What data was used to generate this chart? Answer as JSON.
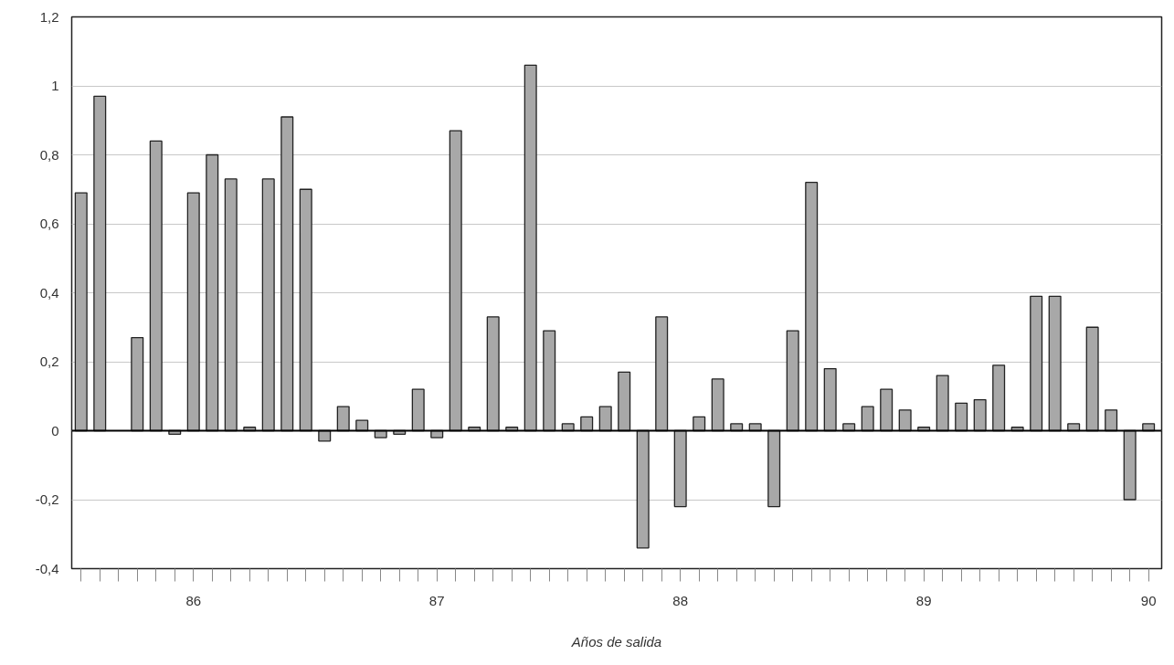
{
  "chart_data": {
    "type": "bar",
    "xlabel": "Años de salida",
    "categories": [
      null,
      null,
      null,
      null,
      null,
      null,
      "86",
      null,
      null,
      null,
      null,
      null,
      null,
      null,
      null,
      null,
      null,
      null,
      null,
      "87",
      null,
      null,
      null,
      null,
      null,
      null,
      null,
      null,
      null,
      null,
      null,
      null,
      "88",
      null,
      null,
      null,
      null,
      null,
      null,
      null,
      null,
      null,
      null,
      null,
      null,
      "89",
      null,
      null,
      null,
      null,
      null,
      null,
      null,
      null,
      null,
      null,
      null,
      "90"
    ],
    "values": [
      0.69,
      0.97,
      null,
      0.27,
      0.84,
      -0.01,
      0.69,
      0.8,
      0.73,
      0.01,
      0.73,
      0.91,
      0.7,
      -0.03,
      0.07,
      0.03,
      -0.02,
      -0.01,
      0.12,
      -0.02,
      0.87,
      0.01,
      0.33,
      0.01,
      1.06,
      0.29,
      0.02,
      0.04,
      0.07,
      0.17,
      -0.34,
      0.33,
      -0.22,
      0.04,
      0.15,
      0.02,
      0.02,
      -0.22,
      0.29,
      0.72,
      0.18,
      0.02,
      0.07,
      0.12,
      0.06,
      0.01,
      0.16,
      0.08,
      0.09,
      0.19,
      0.01,
      0.39,
      0.39,
      0.02,
      0.3,
      0.06,
      -0.2,
      0.02
    ],
    "color": "#a8a8a8",
    "ylim": [
      -0.4,
      1.2
    ],
    "yticks": [
      {
        "value": -0.4,
        "label": "-0,4"
      },
      {
        "value": -0.2,
        "label": "-0,2"
      },
      0,
      {
        "value": 0.2,
        "label": "0,2"
      },
      {
        "value": 0.4,
        "label": "0,4"
      },
      {
        "value": 0.6,
        "label": "0,6"
      },
      {
        "value": 0.8,
        "label": "0,8"
      },
      1,
      {
        "value": 1.2,
        "label": "1,2"
      }
    ],
    "grid": "y",
    "ref_lines": [
      {
        "axis": "y",
        "value": 0,
        "color": "#000000"
      }
    ]
  }
}
